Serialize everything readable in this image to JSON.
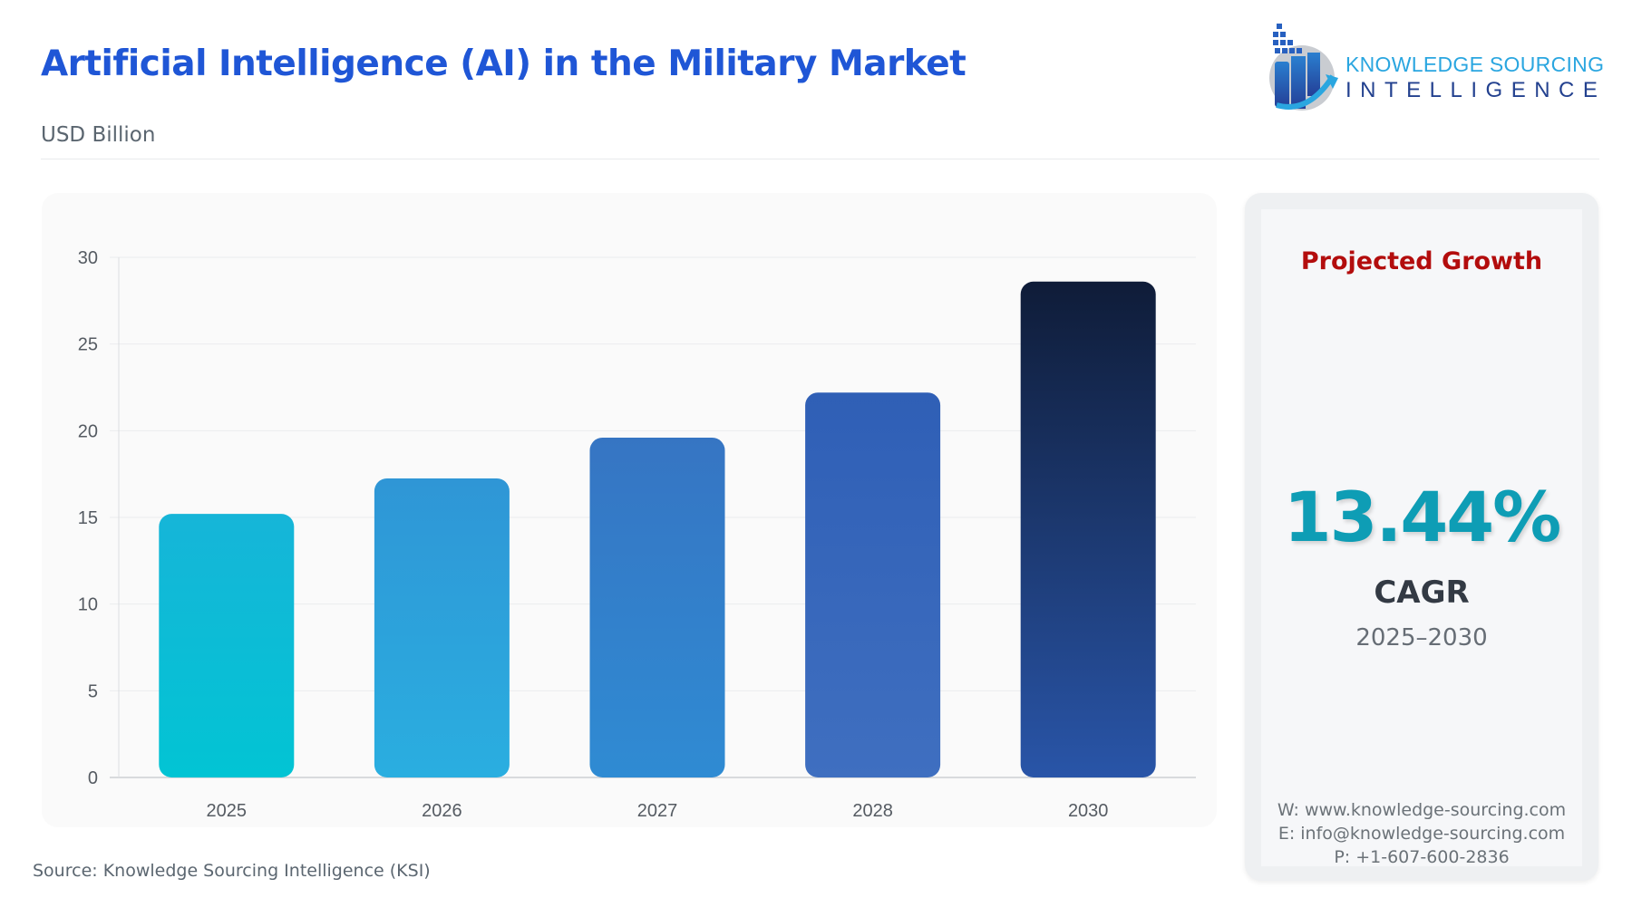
{
  "header": {
    "title": "Artificial Intelligence (AI) in the Military Market",
    "unit": "USD Billion"
  },
  "logo": {
    "line1": "KNOWLEDGE SOURCING",
    "line2": "INTELLIGENCE"
  },
  "chart_data": {
    "type": "bar",
    "categories": [
      "2025",
      "2026",
      "2027",
      "2028",
      "2030"
    ],
    "values": [
      15.2,
      17.25,
      19.6,
      22.2,
      28.6
    ],
    "title": "",
    "xlabel": "",
    "ylabel": "",
    "ylim": [
      0,
      30
    ],
    "yticks": [
      "0",
      "5",
      "10",
      "15",
      "20",
      "25",
      "30"
    ],
    "grid": true,
    "bar_colors": [
      [
        "#16b5d8",
        "#02c4d4"
      ],
      [
        "#2f96d6",
        "#2aaee0"
      ],
      [
        "#3675c3",
        "#2f8bd3"
      ],
      [
        "#2f5fb6",
        "#3f6fc0"
      ],
      [
        "#0f1c38",
        "#2955a8"
      ]
    ]
  },
  "side_panel": {
    "heading": "Projected Growth",
    "cagr_value": "13.44%",
    "cagr_label": "CAGR",
    "period": "2025–2030",
    "website": "W: www.knowledge-sourcing.com",
    "email": "E: info@knowledge-sourcing.com",
    "phone": "P: +1-607-600-2836"
  },
  "source": "Source: Knowledge Sourcing Intelligence (KSI)",
  "colors": {
    "title": "#1f56d6",
    "heading": "#b30d0d",
    "cagr": "#0e9db5"
  }
}
